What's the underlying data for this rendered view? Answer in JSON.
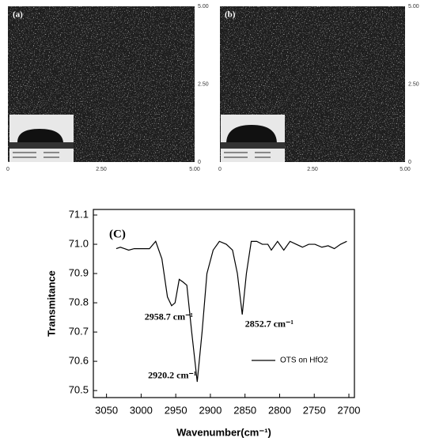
{
  "panels": [
    {
      "label": "(a)",
      "xlim": [
        0,
        5
      ],
      "ylim": [
        0,
        5
      ],
      "xticks": [
        0,
        {
          "value": 2.5,
          "label": "2.50"
        },
        {
          "value": 5,
          "label": "5.00"
        }
      ],
      "yticks": [
        0,
        {
          "value": 2.5,
          "label": "2.50"
        },
        {
          "value": 5,
          "label": "5.00"
        }
      ]
    },
    {
      "label": "(b)",
      "xlim": [
        0,
        5
      ],
      "ylim": [
        0,
        5
      ],
      "xticks": [
        0,
        {
          "value": 2.5,
          "label": "2.50"
        },
        {
          "value": 5,
          "label": "5.00"
        }
      ],
      "yticks": [
        0,
        {
          "value": 2.5,
          "label": "2.50"
        },
        {
          "value": 5,
          "label": "5.00"
        }
      ]
    }
  ],
  "chart_data": {
    "type": "line",
    "panel_label": "(C)",
    "x_label": "Wavenumber(cm⁻¹)",
    "y_label": "Transmitance",
    "x": [
      3036,
      3030,
      3024,
      3018,
      3010,
      2998,
      2988,
      2979,
      2970,
      2962,
      2956,
      2951,
      2945,
      2939,
      2934,
      2927,
      2919,
      2912,
      2905,
      2896,
      2887,
      2877,
      2868,
      2861,
      2854,
      2848,
      2841,
      2833,
      2825,
      2817,
      2812,
      2803,
      2794,
      2785,
      2776,
      2767,
      2758,
      2749,
      2739,
      2730,
      2721,
      2712,
      2703
    ],
    "series": [
      {
        "name": "OTS on HfO2",
        "color": "#000000",
        "values": [
          70.985,
          70.99,
          70.985,
          70.98,
          70.985,
          70.985,
          70.985,
          71.01,
          70.95,
          70.82,
          70.79,
          70.8,
          70.88,
          70.87,
          70.86,
          70.7,
          70.53,
          70.7,
          70.9,
          70.98,
          71.01,
          71.0,
          70.98,
          70.9,
          70.76,
          70.9,
          71.01,
          71.01,
          71.0,
          71.0,
          70.98,
          71.01,
          70.98,
          71.01,
          71.0,
          70.99,
          71.0,
          71.0,
          70.99,
          70.995,
          70.985,
          71.0,
          71.01
        ]
      }
    ],
    "xlim": [
      3069,
      2692
    ],
    "ylim": [
      70.476,
      71.119
    ],
    "xticks": [
      3050,
      3000,
      2950,
      2900,
      2850,
      2800,
      2750,
      2700
    ],
    "yticks": [
      70.5,
      70.6,
      70.7,
      70.8,
      70.9,
      {
        "value": 71,
        "label": "71.0"
      },
      71.1
    ],
    "annotations": [
      {
        "text": "2958.7 cm⁻¹",
        "x": 2995,
        "y": 70.75
      },
      {
        "text": "2852.7 cm⁻¹",
        "x": 2850,
        "y": 70.725
      },
      {
        "text": "2920.2 cm⁻¹",
        "x": 2990,
        "y": 70.55
      }
    ],
    "legend": "lower right"
  }
}
